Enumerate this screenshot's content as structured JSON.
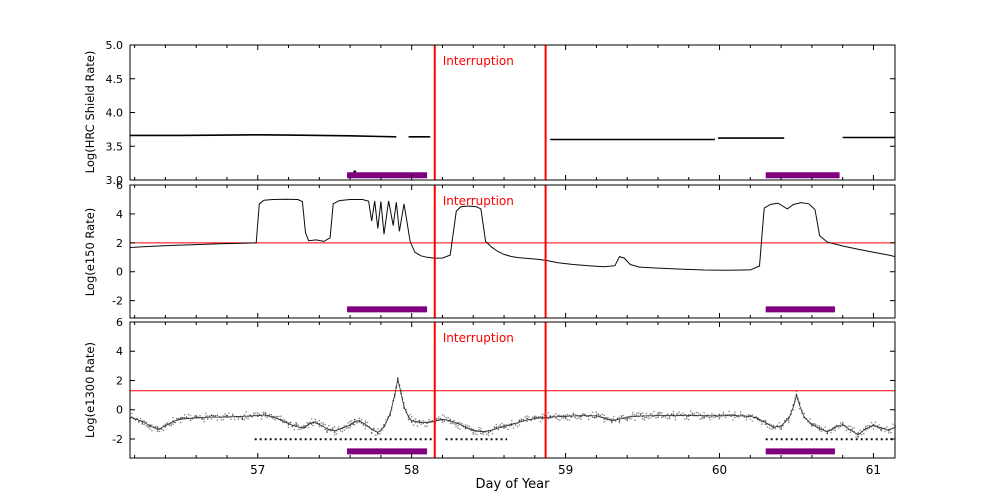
{
  "figure": {
    "xlabel": "Day of Year",
    "x_range": [
      56.17,
      61.14
    ],
    "x_ticks": [
      57,
      58,
      59,
      60,
      61
    ],
    "x_minor_step": 0.2,
    "interruption": {
      "label": "Interruption",
      "color": "#ff0000",
      "x_values": [
        58.15,
        58.87
      ]
    },
    "colors": {
      "line": "#000000",
      "annotation": "#ff0000",
      "threshold": "#ff0000",
      "event_bar": "#800080",
      "scatter": "#2b2b2b"
    }
  },
  "chart_data": [
    {
      "type": "line",
      "ylabel": "Log(HRC Shield Rate)",
      "ylim": [
        3.0,
        5.0
      ],
      "yticks": [
        {
          "label": "5.0",
          "v": 5.0
        },
        {
          "label": "4.5",
          "v": 4.5
        },
        {
          "label": "4.0",
          "v": 4.0
        },
        {
          "label": "3.5",
          "v": 3.5
        },
        {
          "label": "3.0",
          "v": 3.0
        }
      ],
      "hline": null,
      "series": [
        {
          "name": "hrc-shield-rate",
          "color": "#000000",
          "width": 1.6,
          "segments": [
            [
              [
                56.17,
                3.66
              ],
              [
                56.5,
                3.66
              ],
              [
                56.8,
                3.665
              ],
              [
                57.0,
                3.67
              ],
              [
                57.2,
                3.665
              ],
              [
                57.4,
                3.66
              ],
              [
                57.6,
                3.655
              ],
              [
                57.8,
                3.645
              ],
              [
                57.9,
                3.64
              ]
            ],
            [
              [
                57.98,
                3.64
              ],
              [
                58.12,
                3.64
              ]
            ],
            [
              [
                58.9,
                3.6
              ],
              [
                59.3,
                3.6
              ],
              [
                59.7,
                3.6
              ],
              [
                59.97,
                3.6
              ]
            ],
            [
              [
                59.99,
                3.62
              ],
              [
                60.2,
                3.62
              ],
              [
                60.42,
                3.62
              ]
            ],
            [
              [
                60.8,
                3.63
              ],
              [
                61.0,
                3.63
              ],
              [
                61.14,
                3.63
              ]
            ]
          ]
        }
      ],
      "points": [
        [
          57.63,
          3.12
        ]
      ],
      "bars": [
        {
          "x0": 57.58,
          "x1": 58.1,
          "y": 3.07
        },
        {
          "x0": 60.3,
          "x1": 60.78,
          "y": 3.07
        }
      ]
    },
    {
      "type": "line",
      "ylabel": "Log(e150  Rate)",
      "ylim": [
        -3.2,
        6
      ],
      "yticks": [
        {
          "label": "6",
          "v": 6
        },
        {
          "label": "4",
          "v": 4
        },
        {
          "label": "2",
          "v": 2
        },
        {
          "label": "0",
          "v": 0
        },
        {
          "label": "-2",
          "v": -2
        }
      ],
      "hline": {
        "y": 2.0,
        "color": "#ff0000"
      },
      "series": [
        {
          "name": "e150-rate",
          "color": "#0a0a0a",
          "width": 1.0,
          "segments": [
            [
              [
                56.17,
                1.68
              ],
              [
                56.3,
                1.75
              ],
              [
                56.45,
                1.82
              ],
              [
                56.6,
                1.88
              ],
              [
                56.75,
                1.93
              ],
              [
                56.9,
                1.97
              ],
              [
                56.99,
                2.0
              ],
              [
                57.01,
                4.7
              ],
              [
                57.04,
                4.95
              ],
              [
                57.1,
                5.0
              ],
              [
                57.18,
                5.02
              ],
              [
                57.26,
                5.0
              ],
              [
                57.29,
                4.85
              ],
              [
                57.31,
                2.7
              ],
              [
                57.33,
                2.15
              ],
              [
                57.38,
                2.2
              ],
              [
                57.43,
                2.1
              ],
              [
                57.47,
                2.35
              ],
              [
                57.49,
                4.7
              ],
              [
                57.53,
                4.92
              ],
              [
                57.6,
                5.0
              ],
              [
                57.68,
                5.0
              ],
              [
                57.72,
                4.88
              ],
              [
                57.74,
                3.5
              ],
              [
                57.76,
                4.9
              ],
              [
                57.78,
                3.0
              ],
              [
                57.8,
                4.85
              ],
              [
                57.82,
                2.6
              ],
              [
                57.85,
                4.9
              ],
              [
                57.88,
                3.2
              ],
              [
                57.9,
                4.8
              ],
              [
                57.92,
                2.8
              ],
              [
                57.95,
                4.7
              ],
              [
                57.97,
                3.4
              ],
              [
                57.99,
                2.1
              ],
              [
                58.02,
                1.35
              ],
              [
                58.06,
                1.1
              ],
              [
                58.1,
                1.0
              ],
              [
                58.15,
                0.93
              ],
              [
                58.2,
                0.95
              ],
              [
                58.25,
                1.15
              ],
              [
                58.29,
                4.2
              ],
              [
                58.32,
                4.5
              ],
              [
                58.37,
                4.55
              ],
              [
                58.42,
                4.5
              ],
              [
                58.45,
                4.35
              ],
              [
                58.48,
                2.1
              ],
              [
                58.52,
                1.7
              ],
              [
                58.56,
                1.4
              ],
              [
                58.6,
                1.2
              ],
              [
                58.65,
                1.05
              ],
              [
                58.7,
                0.97
              ],
              [
                58.75,
                0.92
              ],
              [
                58.8,
                0.88
              ],
              [
                58.87,
                0.8
              ],
              [
                58.95,
                0.62
              ],
              [
                59.05,
                0.5
              ],
              [
                59.15,
                0.42
              ],
              [
                59.25,
                0.35
              ],
              [
                59.32,
                0.42
              ],
              [
                59.35,
                1.05
              ],
              [
                59.38,
                0.95
              ],
              [
                59.42,
                0.5
              ],
              [
                59.48,
                0.32
              ],
              [
                59.6,
                0.25
              ],
              [
                59.75,
                0.18
              ],
              [
                59.9,
                0.12
              ],
              [
                60.05,
                0.1
              ],
              [
                60.2,
                0.13
              ],
              [
                60.26,
                0.4
              ],
              [
                60.29,
                4.4
              ],
              [
                60.33,
                4.65
              ],
              [
                60.38,
                4.75
              ],
              [
                60.44,
                4.35
              ],
              [
                60.48,
                4.65
              ],
              [
                60.53,
                4.78
              ],
              [
                60.58,
                4.7
              ],
              [
                60.62,
                4.3
              ],
              [
                60.65,
                2.5
              ],
              [
                60.7,
                2.05
              ],
              [
                60.8,
                1.78
              ],
              [
                60.9,
                1.55
              ],
              [
                61.0,
                1.35
              ],
              [
                61.1,
                1.15
              ],
              [
                61.14,
                1.05
              ]
            ]
          ]
        }
      ],
      "points": [],
      "bars": [
        {
          "x0": 57.58,
          "x1": 58.1,
          "y": -2.6
        },
        {
          "x0": 60.3,
          "x1": 60.75,
          "y": -2.6
        }
      ]
    },
    {
      "type": "scatter",
      "ylabel": "Log(e1300 Rate)",
      "ylim": [
        -3.3,
        6
      ],
      "yticks": [
        {
          "label": "6",
          "v": 6
        },
        {
          "label": "4",
          "v": 4
        },
        {
          "label": "2",
          "v": 2
        },
        {
          "label": "0",
          "v": 0
        },
        {
          "label": "-2",
          "v": -2
        }
      ],
      "hline": {
        "y": 1.3,
        "color": "#ff0000"
      },
      "scatter_band": {
        "color": "#2b2b2b",
        "spread": 0.3
      },
      "series": [
        {
          "name": "e1300-rate",
          "color": "#2b2b2b",
          "width": 0.8,
          "segments": [
            [
              [
                56.17,
                -0.5
              ],
              [
                56.25,
                -0.8
              ],
              [
                56.3,
                -1.1
              ],
              [
                56.35,
                -1.35
              ],
              [
                56.4,
                -1.1
              ],
              [
                56.45,
                -0.8
              ],
              [
                56.5,
                -0.65
              ],
              [
                56.6,
                -0.55
              ],
              [
                56.7,
                -0.5
              ],
              [
                56.8,
                -0.5
              ],
              [
                56.9,
                -0.45
              ],
              [
                57.0,
                -0.4
              ],
              [
                57.05,
                -0.35
              ],
              [
                57.1,
                -0.5
              ],
              [
                57.15,
                -0.7
              ],
              [
                57.2,
                -0.95
              ],
              [
                57.25,
                -1.15
              ],
              [
                57.3,
                -1.25
              ],
              [
                57.33,
                -1.0
              ],
              [
                57.36,
                -0.85
              ],
              [
                57.4,
                -1.0
              ],
              [
                57.45,
                -1.3
              ],
              [
                57.5,
                -1.45
              ],
              [
                57.55,
                -1.25
              ],
              [
                57.6,
                -1.05
              ],
              [
                57.63,
                -0.8
              ],
              [
                57.66,
                -0.75
              ],
              [
                57.7,
                -1.0
              ],
              [
                57.74,
                -1.35
              ],
              [
                57.78,
                -1.55
              ],
              [
                57.82,
                -1.2
              ],
              [
                57.86,
                -0.3
              ],
              [
                57.89,
                1.0
              ],
              [
                57.91,
                2.1
              ],
              [
                57.93,
                1.2
              ],
              [
                57.95,
                0.2
              ],
              [
                57.98,
                -0.5
              ],
              [
                58.0,
                -0.75
              ],
              [
                58.05,
                -0.85
              ],
              [
                58.1,
                -0.9
              ],
              [
                58.15,
                -0.8
              ],
              [
                58.2,
                -0.65
              ],
              [
                58.25,
                -0.75
              ],
              [
                58.3,
                -0.95
              ],
              [
                58.35,
                -1.2
              ],
              [
                58.4,
                -1.4
              ],
              [
                58.45,
                -1.5
              ],
              [
                58.5,
                -1.45
              ],
              [
                58.55,
                -1.3
              ],
              [
                58.6,
                -1.15
              ],
              [
                58.65,
                -1.0
              ],
              [
                58.7,
                -0.85
              ],
              [
                58.75,
                -0.7
              ],
              [
                58.8,
                -0.6
              ],
              [
                58.85,
                -0.55
              ],
              [
                58.9,
                -0.5
              ],
              [
                59.0,
                -0.45
              ],
              [
                59.1,
                -0.4
              ],
              [
                59.2,
                -0.42
              ],
              [
                59.25,
                -0.55
              ],
              [
                59.3,
                -0.75
              ],
              [
                59.35,
                -0.65
              ],
              [
                59.4,
                -0.5
              ],
              [
                59.5,
                -0.42
              ],
              [
                59.6,
                -0.4
              ],
              [
                59.7,
                -0.38
              ],
              [
                59.8,
                -0.38
              ],
              [
                59.9,
                -0.4
              ],
              [
                60.0,
                -0.42
              ],
              [
                60.1,
                -0.4
              ],
              [
                60.2,
                -0.45
              ],
              [
                60.25,
                -0.6
              ],
              [
                60.3,
                -0.9
              ],
              [
                60.35,
                -1.2
              ],
              [
                60.4,
                -1.1
              ],
              [
                60.45,
                -0.6
              ],
              [
                60.48,
                0.2
              ],
              [
                60.5,
                1.0
              ],
              [
                60.52,
                0.3
              ],
              [
                60.55,
                -0.5
              ],
              [
                60.6,
                -1.0
              ],
              [
                60.65,
                -1.3
              ],
              [
                60.7,
                -1.5
              ],
              [
                60.75,
                -1.2
              ],
              [
                60.8,
                -1.0
              ],
              [
                60.85,
                -1.4
              ],
              [
                60.9,
                -1.7
              ],
              [
                60.95,
                -1.3
              ],
              [
                61.0,
                -1.05
              ],
              [
                61.05,
                -1.25
              ],
              [
                61.1,
                -1.4
              ],
              [
                61.14,
                -1.2
              ]
            ]
          ]
        }
      ],
      "floor": {
        "y": -2.02,
        "color": "#111111",
        "spans": [
          [
            56.98,
            58.13
          ],
          [
            58.22,
            58.62
          ],
          [
            60.3,
            61.14
          ]
        ]
      },
      "points": [],
      "bars": [
        {
          "x0": 57.58,
          "x1": 58.1,
          "y": -2.85
        },
        {
          "x0": 60.3,
          "x1": 60.75,
          "y": -2.85
        }
      ]
    }
  ]
}
